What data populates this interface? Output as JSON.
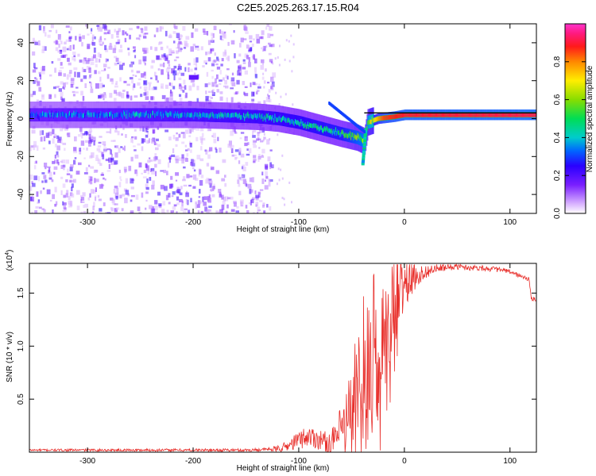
{
  "title": "C2E5.2025.263.17.15.R04",
  "chart_data": [
    {
      "type": "heatmap",
      "panel": "top",
      "xlabel": "Height of straight line (km)",
      "ylabel": "Frequency (Hz)",
      "xlim": [
        -355,
        125
      ],
      "ylim": [
        -50,
        50
      ],
      "xticks": [
        -300,
        -200,
        -100,
        0,
        100
      ],
      "yticks": [
        -40,
        -20,
        0,
        20,
        40
      ],
      "xtick_labels": [
        "-300",
        "-200",
        "-100",
        "0",
        "100"
      ],
      "ytick_labels": [
        "-40",
        "-20",
        "0",
        "20",
        "40"
      ],
      "colorbar": {
        "label": "Normalized spectral amplitude",
        "range": [
          0,
          1
        ],
        "ticks": [
          0.0,
          0.2,
          0.4,
          0.6,
          0.8
        ],
        "tick_labels": [
          "0.0",
          "0.2",
          "0.4",
          "0.6",
          "0.8"
        ]
      },
      "ridge": {
        "description_points_km_hz": [
          [
            -355,
            2
          ],
          [
            -300,
            2
          ],
          [
            -200,
            2
          ],
          [
            -140,
            1
          ],
          [
            -120,
            0
          ],
          [
            -100,
            -2
          ],
          [
            -80,
            -5
          ],
          [
            -60,
            -8
          ],
          [
            -45,
            -10
          ],
          [
            -38,
            -12
          ],
          [
            -35,
            -2
          ],
          [
            -25,
            0
          ],
          [
            -10,
            1
          ],
          [
            0,
            2
          ],
          [
            30,
            2
          ],
          [
            80,
            2
          ],
          [
            125,
            2
          ]
        ],
        "amplitude_points_km": [
          [
            -355,
            0.3
          ],
          [
            -130,
            0.4
          ],
          [
            -60,
            0.45
          ],
          [
            -36,
            0.6
          ],
          [
            -20,
            0.85
          ],
          [
            0,
            0.9
          ],
          [
            125,
            0.92
          ]
        ]
      },
      "noise_region_km": [
        -355,
        -125
      ],
      "feature_near_km": [
        -200,
        20
      ]
    },
    {
      "type": "line",
      "panel": "bottom",
      "xlabel": "Height of straight line (km)",
      "ylabel": "SNR (10 * v/v)",
      "scale_label": "(x10",
      "scale_exp": "4",
      "scale_close": ")",
      "xlim": [
        -355,
        125
      ],
      "ylim": [
        0,
        1.78
      ],
      "xticks": [
        -300,
        -200,
        -100,
        0,
        100
      ],
      "yticks": [
        0.5,
        1.0,
        1.5
      ],
      "xtick_labels": [
        "-300",
        "-200",
        "-100",
        "0",
        "100"
      ],
      "ytick_labels": [
        "0.5",
        "1.0",
        "1.5"
      ],
      "color": "#e8302c",
      "series": [
        {
          "name": "SNR",
          "x": [
            -355,
            -300,
            -250,
            -200,
            -150,
            -120,
            -110,
            -100,
            -90,
            -80,
            -70,
            -60,
            -55,
            -50,
            -45,
            -40,
            -35,
            -30,
            -25,
            -20,
            -15,
            -10,
            -5,
            0,
            10,
            20,
            30,
            40,
            50,
            60,
            70,
            80,
            90,
            100,
            110,
            118,
            120,
            125
          ],
          "y": [
            0.02,
            0.02,
            0.02,
            0.02,
            0.02,
            0.03,
            0.06,
            0.12,
            0.15,
            0.12,
            0.08,
            0.18,
            0.28,
            0.38,
            0.55,
            0.7,
            0.85,
            0.95,
            1.05,
            1.1,
            1.25,
            1.4,
            1.5,
            1.58,
            1.65,
            1.7,
            1.73,
            1.74,
            1.75,
            1.74,
            1.74,
            1.73,
            1.72,
            1.7,
            1.66,
            1.63,
            1.45,
            1.44
          ]
        }
      ],
      "noise_profile": [
        [
          -355,
          0.01
        ],
        [
          -130,
          0.015
        ],
        [
          -110,
          0.05
        ],
        [
          -95,
          0.1
        ],
        [
          -70,
          0.1
        ],
        [
          -60,
          0.25
        ],
        [
          -45,
          0.6
        ],
        [
          -35,
          0.85
        ],
        [
          -25,
          0.75
        ],
        [
          -10,
          0.45
        ],
        [
          0,
          0.25
        ],
        [
          10,
          0.12
        ],
        [
          20,
          0.06
        ],
        [
          40,
          0.03
        ],
        [
          125,
          0.02
        ]
      ]
    }
  ],
  "colors": {
    "line": "#e8302c",
    "colorbar_stops": [
      "#ffffff",
      "#d9b3ff",
      "#7a1fff",
      "#2a00ff",
      "#0066ff",
      "#00cccc",
      "#00dd55",
      "#88dd00",
      "#ffee00",
      "#ff8800",
      "#ff1a1a",
      "#ff1a80",
      "#ff33cc"
    ]
  }
}
